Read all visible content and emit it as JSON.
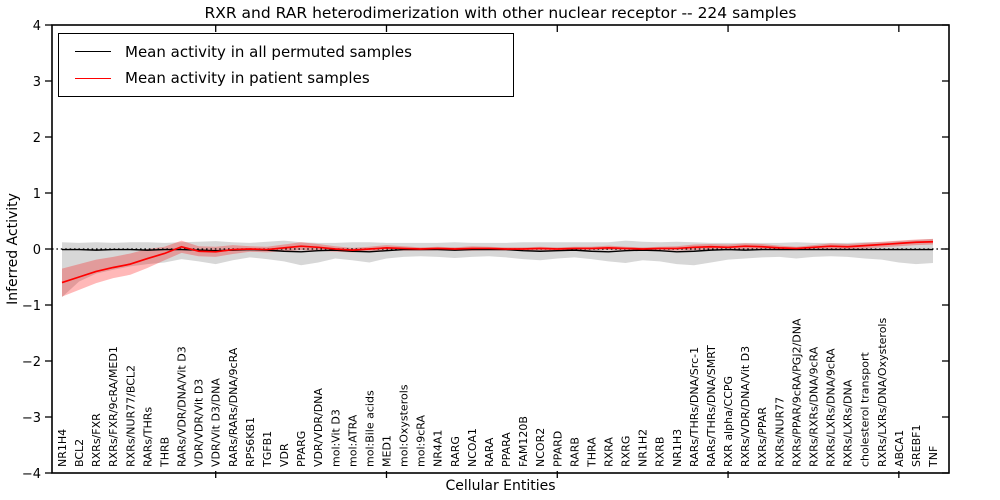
{
  "colors": {
    "permuted_line": "#000000",
    "patient_line": "#ff0000",
    "permuted_band": "rgba(130,130,130,0.32)",
    "patient_band": "rgba(255,0,0,0.28)",
    "axis": "#000000",
    "background": "#ffffff"
  },
  "chart_data": {
    "type": "line",
    "title": "RXR and RAR heterodimerization with other nuclear receptor -- 224 samples",
    "xlabel": "Cellular Entities",
    "ylabel": "Inferred Activity",
    "ylim": [
      -4,
      4
    ],
    "ytick_values": [
      4,
      3,
      2,
      1,
      0,
      -1,
      -2,
      -3,
      -4
    ],
    "ytick_labels": [
      "4",
      "3",
      "2",
      "1",
      "0",
      "−1",
      "−2",
      "−3",
      "−4"
    ],
    "xtick_indices": [
      9,
      19,
      29,
      39,
      49
    ],
    "grid": false,
    "legend_position": "upper left",
    "zero_line": true,
    "categories": [
      "NR1H4",
      "BCL2",
      "RXRs/FXR",
      "RXRs/FXR/9cRA/MED1",
      "RXRs/NUR77/BCL2",
      "RARs/THRs",
      "THRB",
      "RARs/VDR/DNA/Vit D3",
      "VDR/VDR/Vit D3",
      "VDR/Vit D3/DNA",
      "RARs/RARs/DNA/9cRA",
      "RPS6KB1",
      "TGFB1",
      "VDR",
      "PPARG",
      "VDR/VDR/DNA",
      "mol:Vit D3",
      "mol:ATRA",
      "mol:Bile acids",
      "MED1",
      "mol:Oxysterols",
      "mol:9cRA",
      "NR4A1",
      "RARG",
      "NCOA1",
      "RARA",
      "PPARA",
      "FAM120B",
      "NCOR2",
      "PPARD",
      "RARB",
      "THRA",
      "RXRA",
      "RXRG",
      "NR1H2",
      "RXRB",
      "NR1H3",
      "RARs/THRs/DNA/Src-1",
      "RARs/THRs/DNA/SMRT",
      "RXR alpha/CCPG",
      "RXRs/VDR/DNA/Vit D3",
      "RXRs/PPAR",
      "RXRs/NUR77",
      "RXRs/PPAR/9cRA/PGJ2/DNA",
      "RXRs/RXRs/DNA/9cRA",
      "RXRs/LXRs/DNA/9cRA",
      "RXRs/LXRs/DNA",
      "cholesterol transport",
      "RXRs/LXRs/DNA/Oxysterols",
      "ABCA1",
      "SREBF1",
      "TNF"
    ],
    "series": [
      {
        "name": "Mean activity in all permuted samples",
        "color_key": "permuted_line",
        "band_color_key": "permuted_band",
        "values": [
          -0.01,
          -0.01,
          -0.02,
          -0.01,
          -0.01,
          -0.02,
          -0.01,
          -0.01,
          -0.02,
          -0.03,
          -0.02,
          -0.01,
          -0.02,
          -0.04,
          -0.05,
          -0.03,
          -0.02,
          -0.04,
          -0.05,
          -0.03,
          -0.01,
          -0.01,
          -0.01,
          -0.02,
          -0.01,
          -0.01,
          -0.01,
          -0.03,
          -0.04,
          -0.03,
          -0.02,
          -0.04,
          -0.05,
          -0.03,
          -0.02,
          -0.03,
          -0.05,
          -0.04,
          -0.02,
          -0.01,
          -0.02,
          -0.01,
          -0.01,
          -0.01,
          -0.01,
          -0.01,
          -0.01,
          -0.01,
          -0.01,
          -0.01,
          -0.01,
          -0.01
        ],
        "band_upper": [
          0.12,
          0.11,
          0.12,
          0.11,
          0.12,
          0.12,
          0.11,
          0.12,
          0.13,
          0.14,
          0.12,
          0.11,
          0.13,
          0.15,
          0.12,
          0.11,
          0.11,
          0.12,
          0.12,
          0.11,
          0.11,
          0.11,
          0.11,
          0.12,
          0.11,
          0.11,
          0.11,
          0.12,
          0.12,
          0.12,
          0.12,
          0.12,
          0.12,
          0.15,
          0.13,
          0.12,
          0.13,
          0.12,
          0.11,
          0.11,
          0.11,
          0.11,
          0.11,
          0.12,
          0.11,
          0.11,
          0.11,
          0.12,
          0.12,
          0.14,
          0.16,
          0.18
        ],
        "band_lower": [
          -0.86,
          -0.58,
          -0.44,
          -0.37,
          -0.31,
          -0.27,
          -0.24,
          -0.18,
          -0.22,
          -0.27,
          -0.2,
          -0.15,
          -0.18,
          -0.22,
          -0.29,
          -0.24,
          -0.17,
          -0.2,
          -0.24,
          -0.17,
          -0.14,
          -0.13,
          -0.14,
          -0.16,
          -0.14,
          -0.13,
          -0.15,
          -0.18,
          -0.2,
          -0.17,
          -0.15,
          -0.18,
          -0.22,
          -0.25,
          -0.2,
          -0.22,
          -0.27,
          -0.29,
          -0.24,
          -0.19,
          -0.17,
          -0.15,
          -0.14,
          -0.17,
          -0.14,
          -0.13,
          -0.14,
          -0.17,
          -0.19,
          -0.24,
          -0.27,
          -0.25
        ]
      },
      {
        "name": "Mean activity in patient samples",
        "color_key": "patient_line",
        "band_color_key": "patient_band",
        "values": [
          -0.6,
          -0.5,
          -0.4,
          -0.33,
          -0.27,
          -0.17,
          -0.08,
          0.04,
          -0.04,
          -0.05,
          -0.01,
          0.0,
          -0.01,
          0.02,
          0.05,
          0.03,
          0.0,
          -0.02,
          0.0,
          0.02,
          0.01,
          0.0,
          0.01,
          0.0,
          0.01,
          0.01,
          0.0,
          0.0,
          0.01,
          0.0,
          0.01,
          0.01,
          0.02,
          0.01,
          0.0,
          0.01,
          0.01,
          0.03,
          0.04,
          0.03,
          0.05,
          0.04,
          0.02,
          0.01,
          0.03,
          0.05,
          0.04,
          0.06,
          0.08,
          0.1,
          0.12,
          0.13
        ],
        "band_upper": [
          -0.35,
          -0.27,
          -0.19,
          -0.14,
          -0.08,
          0.0,
          0.04,
          0.15,
          0.05,
          0.04,
          0.07,
          0.05,
          0.04,
          0.08,
          0.12,
          0.09,
          0.05,
          0.02,
          0.04,
          0.07,
          0.05,
          0.03,
          0.04,
          0.03,
          0.05,
          0.04,
          0.03,
          0.03,
          0.04,
          0.03,
          0.04,
          0.04,
          0.06,
          0.04,
          0.03,
          0.04,
          0.05,
          0.08,
          0.09,
          0.08,
          0.1,
          0.09,
          0.06,
          0.04,
          0.07,
          0.1,
          0.09,
          0.11,
          0.13,
          0.15,
          0.17,
          0.18
        ],
        "band_lower": [
          -0.85,
          -0.73,
          -0.61,
          -0.52,
          -0.46,
          -0.34,
          -0.2,
          -0.07,
          -0.13,
          -0.14,
          -0.09,
          -0.05,
          -0.06,
          -0.04,
          -0.02,
          -0.03,
          -0.05,
          -0.06,
          -0.04,
          -0.03,
          -0.03,
          -0.03,
          -0.02,
          -0.03,
          -0.03,
          -0.02,
          -0.03,
          -0.03,
          -0.02,
          -0.03,
          -0.02,
          -0.02,
          -0.02,
          -0.02,
          -0.03,
          -0.02,
          -0.03,
          -0.02,
          -0.01,
          -0.02,
          0.0,
          -0.01,
          -0.02,
          -0.02,
          -0.01,
          0.0,
          -0.01,
          0.01,
          0.03,
          0.05,
          0.07,
          0.08
        ]
      }
    ],
    "legend": [
      {
        "label": "Mean activity in all permuted samples",
        "color_key": "permuted_line"
      },
      {
        "label": "Mean activity in patient samples",
        "color_key": "patient_line"
      }
    ]
  }
}
